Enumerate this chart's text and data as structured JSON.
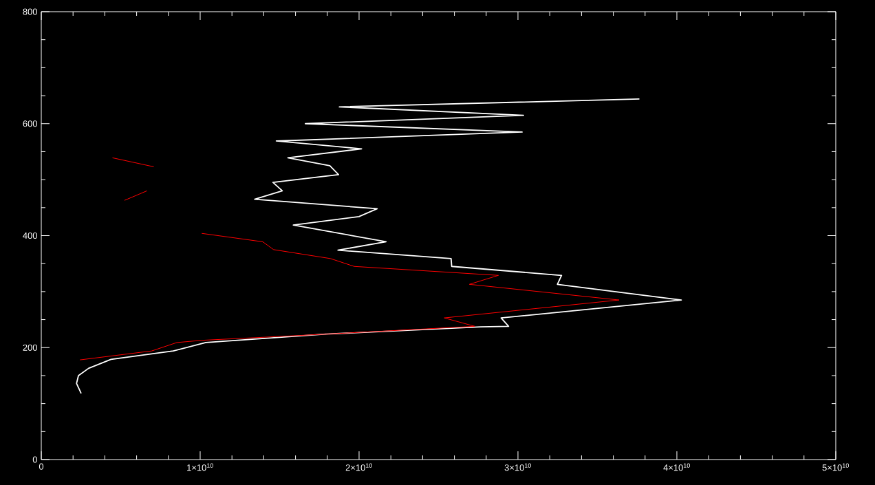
{
  "chart_data": {
    "type": "line",
    "xlim": [
      0,
      50000000000
    ],
    "ylim": [
      0,
      800
    ],
    "xticks": [
      0,
      {
        "value": 10000000000,
        "label": "1×10$^{10}$"
      },
      {
        "value": 20000000000,
        "label": "2×10$^{10}$"
      },
      {
        "value": 30000000000,
        "label": "3×10$^{10}$"
      },
      {
        "value": 40000000000,
        "label": "4×10$^{10}$"
      },
      {
        "value": 50000000000,
        "label": "5×10$^{10}$"
      }
    ],
    "yticks": [
      0,
      200,
      400,
      600,
      800
    ],
    "series": [
      {
        "color": "#ffffff",
        "x": [
          2510000000,
          2220000000,
          2340000000,
          2980000000,
          4390000000,
          8310000000,
          10360000000,
          17900000000,
          27660000000,
          29410000000,
          28940000000,
          40280000000,
          32480000000,
          32740000000,
          25830000000,
          25790000000,
          18670000000,
          21700000000,
          15860000000,
          19990000000,
          21140000000,
          13430000000,
          15170000000,
          14580000000,
          18710000000,
          18160000000,
          15520000000,
          20160000000,
          14790000000,
          30260000000,
          16620000000,
          30350000000,
          18760000000,
          37640000000
        ],
        "values": [
          118,
          136,
          150,
          163,
          179,
          194,
          209,
          224,
          237,
          238,
          253,
          285,
          313,
          329,
          345,
          359,
          374,
          389,
          419,
          434,
          448,
          465,
          480,
          495,
          509,
          525,
          539,
          555,
          569,
          585,
          600,
          615,
          630,
          644
        ]
      },
      {
        "color": "#ff0000",
        "x": [
          2430000000,
          6950000000,
          8530000000,
          10100000000,
          17900000000,
          27280000000,
          25360000000,
          36360000000,
          26940000000,
          28770000000,
          19690000000,
          18200000000,
          14620000000,
          13940000000,
          10100000000,
          null,
          5240000000,
          6650000000,
          null,
          7080000000,
          4480000000
        ],
        "values": [
          178,
          194,
          209,
          213,
          224,
          238,
          253,
          285,
          313,
          329,
          345,
          359,
          375,
          389,
          404,
          null,
          463,
          480,
          null,
          523,
          539
        ]
      }
    ]
  }
}
